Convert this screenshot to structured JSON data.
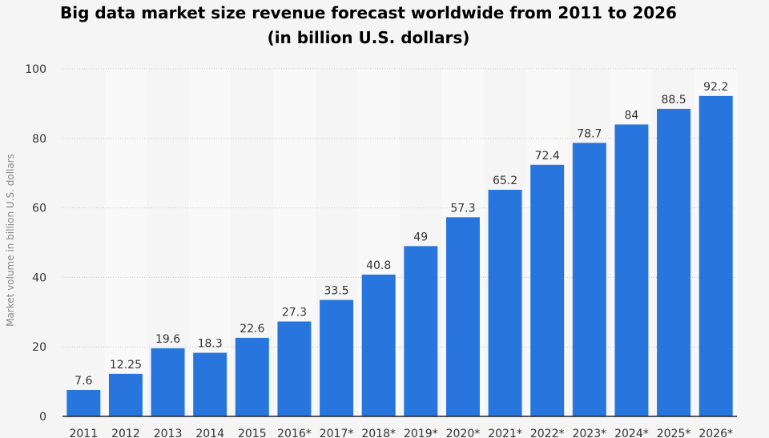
{
  "chart_data": {
    "type": "bar",
    "title": "Big data market size revenue forecast worldwide from 2011 to 2026",
    "subtitle": "(in billion U.S. dollars)",
    "xlabel": "",
    "ylabel": "Market volume in billion U.S. dollars",
    "ylim": [
      0,
      100
    ],
    "yticks": [
      0,
      20,
      40,
      60,
      80,
      100
    ],
    "grid": true,
    "categories": [
      "2011",
      "2012",
      "2013",
      "2014",
      "2015",
      "2016*",
      "2017*",
      "2018*",
      "2019*",
      "2020*",
      "2021*",
      "2022*",
      "2023*",
      "2024*",
      "2025*",
      "2026*"
    ],
    "values": [
      7.6,
      12.25,
      19.6,
      18.3,
      22.6,
      27.3,
      33.5,
      40.8,
      49,
      57.3,
      65.2,
      72.4,
      78.7,
      84,
      88.5,
      92.2
    ],
    "colors": {
      "bar": "#2876dd",
      "band": "#f9f9f9",
      "background": "#f5f5f5",
      "grid": "#c8c8c8",
      "axis": "#222222",
      "text": "#333333"
    }
  }
}
